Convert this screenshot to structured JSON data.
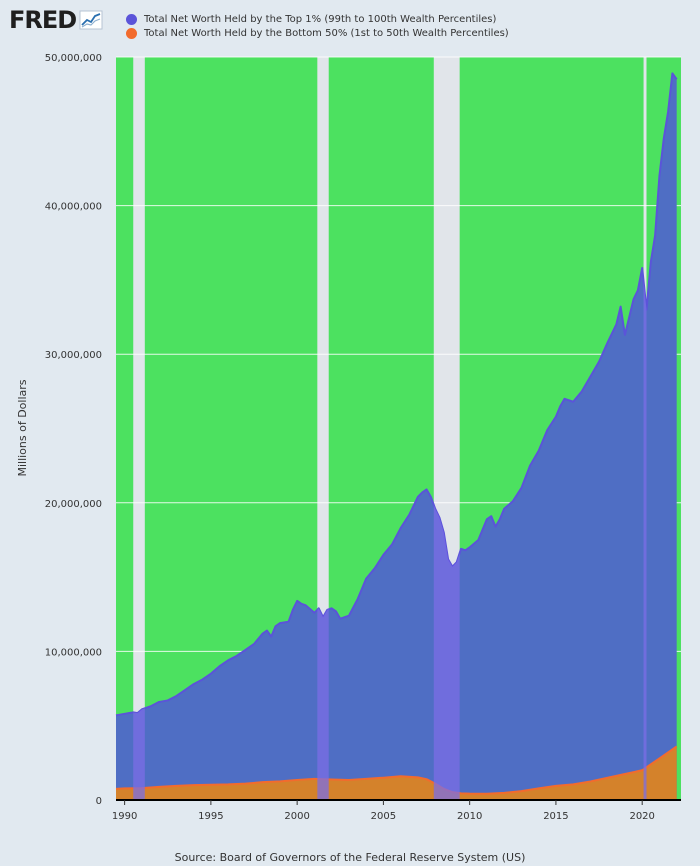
{
  "header": {
    "logo_text": "FRED",
    "legend": [
      {
        "label": "Total Net Worth Held by the Top 1% (99th to 100th Wealth Percentiles)",
        "color": "#5b54d9"
      },
      {
        "label": "Total Net Worth Held by the Bottom 50% (1st to 50th Wealth Percentiles)",
        "color": "#f26b2d"
      }
    ]
  },
  "source": "Source: Board of Governors of the Federal Reserve System (US)",
  "chart_data": {
    "type": "area",
    "ylabel": "Millions of Dollars",
    "xlabel": "",
    "ylim": [
      0,
      50000000
    ],
    "xlim": [
      1989.5,
      2022.25
    ],
    "y_ticks": [
      0,
      10000000,
      20000000,
      30000000,
      40000000,
      50000000
    ],
    "y_tick_labels": [
      "0",
      "10,000,000",
      "20,000,000",
      "30,000,000",
      "40,000,000",
      "50,000,000"
    ],
    "x_ticks": [
      1990,
      1995,
      2000,
      2005,
      2010,
      2015,
      2020
    ],
    "x_tick_labels": [
      "1990",
      "1995",
      "2000",
      "2005",
      "2010",
      "2015",
      "2020"
    ],
    "grid": true,
    "colors": {
      "plot_background": "#4ce160",
      "recession_shading": "#e1e5ea",
      "top1_fill": "#4f6ec4",
      "top1_line": "#5b54d9",
      "bottom50_fill": "#d4822b",
      "bottom50_line": "#f26b2d",
      "overlap_fill": "#7b6ee6"
    },
    "recessions": [
      {
        "start": 1990.5,
        "end": 1991.17
      },
      {
        "start": 2001.17,
        "end": 2001.83
      },
      {
        "start": 2007.92,
        "end": 2009.42
      },
      {
        "start": 2020.08,
        "end": 2020.25
      }
    ],
    "series": [
      {
        "name": "Total Net Worth Held by the Top 1% (99th to 100th Wealth Percentiles)",
        "x": [
          1989.5,
          1990.0,
          1990.5,
          1990.75,
          1991.0,
          1991.5,
          1992.0,
          1992.5,
          1993.0,
          1993.5,
          1994.0,
          1994.5,
          1995.0,
          1995.5,
          1996.0,
          1996.5,
          1997.0,
          1997.5,
          1998.0,
          1998.25,
          1998.5,
          1998.75,
          1999.0,
          1999.5,
          1999.75,
          2000.0,
          2000.25,
          2000.5,
          2001.0,
          2001.25,
          2001.5,
          2001.75,
          2002.0,
          2002.25,
          2002.5,
          2002.75,
          2003.0,
          2003.5,
          2004.0,
          2004.5,
          2005.0,
          2005.5,
          2006.0,
          2006.5,
          2007.0,
          2007.25,
          2007.5,
          2007.75,
          2008.0,
          2008.25,
          2008.5,
          2008.75,
          2009.0,
          2009.25,
          2009.5,
          2009.75,
          2010.0,
          2010.5,
          2011.0,
          2011.25,
          2011.5,
          2011.75,
          2012.0,
          2012.5,
          2013.0,
          2013.5,
          2014.0,
          2014.5,
          2015.0,
          2015.25,
          2015.5,
          2016.0,
          2016.5,
          2017.0,
          2017.5,
          2018.0,
          2018.5,
          2018.75,
          2019.0,
          2019.5,
          2019.75,
          2020.0,
          2020.25,
          2020.5,
          2020.75,
          2021.0,
          2021.25,
          2021.5,
          2021.75,
          2022.0
        ],
        "values": [
          5700000,
          5800000,
          5900000,
          5850000,
          6100000,
          6300000,
          6600000,
          6700000,
          7000000,
          7400000,
          7800000,
          8100000,
          8500000,
          9000000,
          9400000,
          9700000,
          10100000,
          10500000,
          11200000,
          11400000,
          11000000,
          11700000,
          11900000,
          12000000,
          12800000,
          13400000,
          13200000,
          13100000,
          12600000,
          12900000,
          12300000,
          12800000,
          12900000,
          12700000,
          12200000,
          12300000,
          12400000,
          13500000,
          14900000,
          15600000,
          16500000,
          17200000,
          18300000,
          19200000,
          20400000,
          20700000,
          20900000,
          20400000,
          19600000,
          19000000,
          18000000,
          16200000,
          15700000,
          16000000,
          16900000,
          16800000,
          17000000,
          17500000,
          18900000,
          19100000,
          18400000,
          18900000,
          19600000,
          20100000,
          21000000,
          22500000,
          23500000,
          24900000,
          25800000,
          26500000,
          27000000,
          26800000,
          27500000,
          28500000,
          29500000,
          30800000,
          32000000,
          33200000,
          31300000,
          33700000,
          34300000,
          35800000,
          33000000,
          36200000,
          38000000,
          42000000,
          44500000,
          46300000,
          48900000,
          48500000
        ]
      },
      {
        "name": "Total Net Worth Held by the Bottom 50% (1st to 50th Wealth Percentiles)",
        "x": [
          1989.5,
          1990.0,
          1991.0,
          1992.0,
          1993.0,
          1994.0,
          1995.0,
          1996.0,
          1997.0,
          1998.0,
          1999.0,
          2000.0,
          2001.0,
          2002.0,
          2003.0,
          2004.0,
          2005.0,
          2006.0,
          2007.0,
          2007.5,
          2008.0,
          2008.5,
          2009.0,
          2009.5,
          2010.0,
          2011.0,
          2012.0,
          2013.0,
          2014.0,
          2015.0,
          2016.0,
          2017.0,
          2018.0,
          2019.0,
          2020.0,
          2020.5,
          2021.0,
          2021.5,
          2022.0
        ],
        "values": [
          750000,
          780000,
          800000,
          880000,
          950000,
          1000000,
          1030000,
          1050000,
          1100000,
          1200000,
          1250000,
          1350000,
          1420000,
          1380000,
          1350000,
          1420000,
          1500000,
          1600000,
          1520000,
          1400000,
          1100000,
          750000,
          530000,
          450000,
          430000,
          420000,
          480000,
          600000,
          780000,
          950000,
          1050000,
          1250000,
          1500000,
          1750000,
          2000000,
          2400000,
          2800000,
          3200000,
          3600000
        ]
      }
    ]
  }
}
